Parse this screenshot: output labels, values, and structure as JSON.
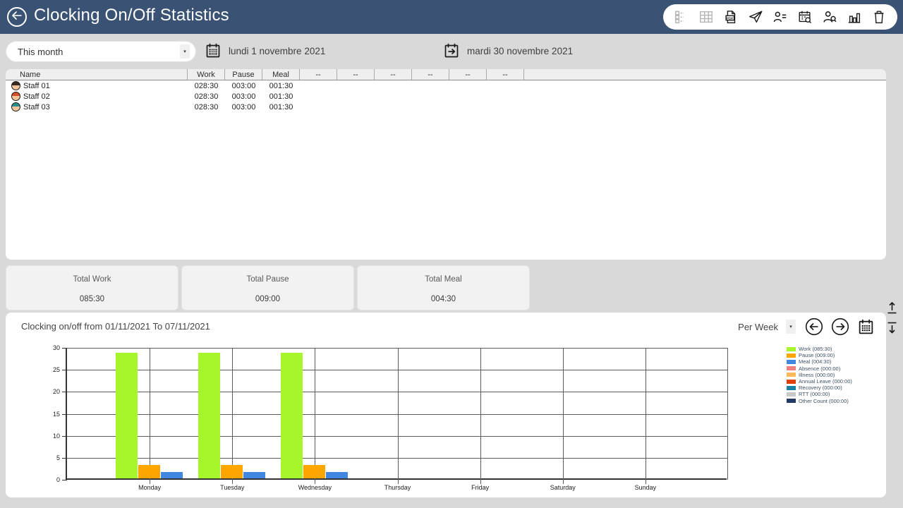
{
  "header": {
    "title": "Clocking On/Off Statistics",
    "toolbar_icons": [
      {
        "name": "checklist",
        "icon": "checklist",
        "disabled": true
      },
      {
        "name": "table-view",
        "icon": "table",
        "disabled": true
      },
      {
        "name": "export-pdf",
        "icon": "pdf",
        "disabled": false
      },
      {
        "name": "send",
        "icon": "send",
        "disabled": false
      },
      {
        "name": "staff-list",
        "icon": "person-list",
        "disabled": false
      },
      {
        "name": "calendar-search",
        "icon": "calendar-search",
        "disabled": false
      },
      {
        "name": "staff-search",
        "icon": "person-search",
        "disabled": false
      },
      {
        "name": "statistics",
        "icon": "bar-chart",
        "disabled": false
      },
      {
        "name": "delete",
        "icon": "trash",
        "disabled": false
      }
    ]
  },
  "filters": {
    "range_label": "This month",
    "start_date": "lundi 1 novembre 2021",
    "end_date": "mardi 30 novembre 2021"
  },
  "table": {
    "columns": [
      "Name",
      "Work",
      "Pause",
      "Meal",
      "--",
      "--",
      "--",
      "--",
      "--",
      "--"
    ],
    "rows": [
      {
        "name": "Staff 01",
        "work": "028:30",
        "pause": "003:00",
        "meal": "001:30",
        "hair": "#3b2a20"
      },
      {
        "name": "Staff 02",
        "work": "028:30",
        "pause": "003:00",
        "meal": "001:30",
        "hair": "#d4502a"
      },
      {
        "name": "Staff 03",
        "work": "028:30",
        "pause": "003:00",
        "meal": "001:30",
        "hair": "#2e8b8b"
      }
    ]
  },
  "totals": [
    {
      "label": "Total Work",
      "value": "085:30"
    },
    {
      "label": "Total Pause",
      "value": "009:00"
    },
    {
      "label": "Total Meal",
      "value": "004:30"
    }
  ],
  "chart_section": {
    "title": "Clocking on/off from 01/11/2021 To 07/11/2021",
    "period_label": "Per Week"
  },
  "chart_data": {
    "type": "bar",
    "title": "Clocking on/off from 01/11/2021 To 07/11/2021",
    "categories": [
      "Monday",
      "Tuesday",
      "Wednesday",
      "Thursday",
      "Friday",
      "Saturday",
      "Sunday"
    ],
    "series": [
      {
        "name": "Work",
        "legend": "Work (085:30)",
        "color": "#a6f62b",
        "values": [
          28.5,
          28.5,
          28.5,
          0,
          0,
          0,
          0
        ]
      },
      {
        "name": "Pause",
        "legend": "Pause (009:00)",
        "color": "#ffa500",
        "values": [
          3,
          3,
          3,
          0,
          0,
          0,
          0
        ]
      },
      {
        "name": "Meal",
        "legend": "Meal (004:30)",
        "color": "#4187e0",
        "values": [
          1.5,
          1.5,
          1.5,
          0,
          0,
          0,
          0
        ]
      },
      {
        "name": "Absence",
        "legend": "Absence (000:00)",
        "color": "#f08080",
        "values": [
          0,
          0,
          0,
          0,
          0,
          0,
          0
        ]
      },
      {
        "name": "Illness",
        "legend": "Illness (000:00)",
        "color": "#ffb85c",
        "values": [
          0,
          0,
          0,
          0,
          0,
          0,
          0
        ]
      },
      {
        "name": "Annual Leave",
        "legend": "Annual Leave (000:00)",
        "color": "#e04006",
        "values": [
          0,
          0,
          0,
          0,
          0,
          0,
          0
        ]
      },
      {
        "name": "Recovery",
        "legend": "Recovery (000:00)",
        "color": "#1b80a5",
        "values": [
          0,
          0,
          0,
          0,
          0,
          0,
          0
        ]
      },
      {
        "name": "RTT",
        "legend": "RTT (000:00)",
        "color": "#c8c8c8",
        "values": [
          0,
          0,
          0,
          0,
          0,
          0,
          0
        ]
      },
      {
        "name": "Other Count",
        "legend": "Other Count (000:00)",
        "color": "#203a63",
        "values": [
          0,
          0,
          0,
          0,
          0,
          0,
          0
        ]
      }
    ],
    "ylim": [
      0,
      30
    ],
    "ystep": 5,
    "x_divisions": 8,
    "grid": true,
    "legend_position": "right"
  }
}
